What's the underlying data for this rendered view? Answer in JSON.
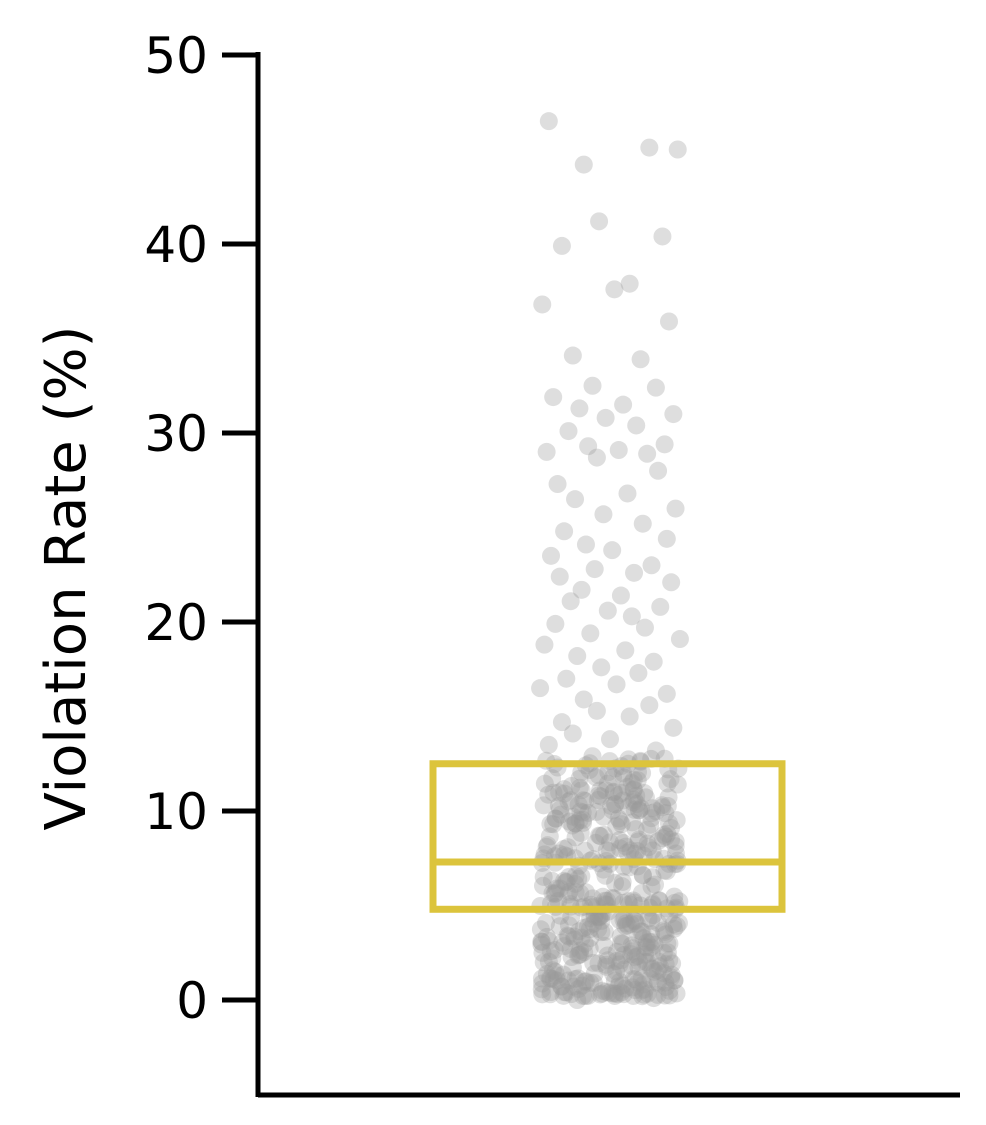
{
  "chart_data": {
    "type": "scatter",
    "subtype": "strip-plot-with-box",
    "title": "",
    "xlabel": "",
    "ylabel": "Violation Rate (%)",
    "ylim": [
      -5,
      50
    ],
    "yticks": [
      0,
      10,
      20,
      30,
      40,
      50
    ],
    "grid": false,
    "legend": "none",
    "box": {
      "q1": 4.8,
      "median": 7.3,
      "q3": 12.5,
      "color": "#dcc43c"
    },
    "points_color": "#999999",
    "points": {
      "x_jitter": [
        -0.28,
        0.31,
        -0.12,
        0.18,
        -0.05,
        0.24,
        -0.22,
        0.09,
        0.02,
        -0.31,
        0.27,
        -0.17,
        0.14,
        -0.08,
        0.21,
        -0.26,
        0.06,
        -0.14,
        0.29,
        -0.02,
        0.12,
        -0.19,
        0.25,
        -0.1,
        0.04,
        -0.29,
        0.17,
        -0.06,
        0.22,
        -0.24,
        0.08,
        -0.16,
        0.3,
        -0.03,
        0.15,
        -0.21,
        0.26,
        -0.11,
        0.01,
        -0.27,
        0.19,
        -0.07,
        0.11,
        -0.23,
        0.28,
        -0.13,
        0.05,
        -0.18,
        0.23,
        -0.01,
        0.1,
        -0.25,
        0.16,
        -0.09,
        0.32,
        -0.3,
        0.07,
        -0.15,
        0.2,
        -0.04,
        0.13,
        -0.2,
        0.03,
        -0.32,
        0.26,
        -0.12,
        0.18,
        -0.06,
        0.09,
        -0.22,
        0.29,
        -0.17,
        0.0,
        -0.28,
        0.21,
        -0.08,
        0.14,
        -0.24,
        0.06,
        -0.14,
        0.31,
        -0.02,
        0.12,
        -0.19,
        0.24,
        -0.1,
        0.04,
        -0.26,
        0.17,
        -0.05,
        0.22,
        -0.29,
        0.08,
        -0.16,
        0.27,
        -0.03,
        0.15,
        -0.21,
        0.19,
        -0.11,
        0.01,
        -0.27,
        0.3,
        -0.07,
        0.11,
        -0.23,
        0.25,
        -0.13,
        0.05,
        -0.18,
        0.16,
        -0.01,
        0.1,
        -0.25,
        0.28,
        -0.09,
        0.07,
        -0.31,
        0.2,
        -0.15
      ],
      "y": [
        46.5,
        45.0,
        44.2,
        45.1,
        41.2,
        40.4,
        39.9,
        37.9,
        37.6,
        36.8,
        35.9,
        34.1,
        33.9,
        32.5,
        32.4,
        31.9,
        31.5,
        31.3,
        31.0,
        30.8,
        30.4,
        30.1,
        29.4,
        29.3,
        29.1,
        29.0,
        28.9,
        28.7,
        28.0,
        27.3,
        26.8,
        26.5,
        26.0,
        25.7,
        25.2,
        24.8,
        24.4,
        24.1,
        23.8,
        23.5,
        23.0,
        22.8,
        22.6,
        22.4,
        22.1,
        21.7,
        21.4,
        21.1,
        20.8,
        20.6,
        20.3,
        19.9,
        19.7,
        19.4,
        19.1,
        18.8,
        18.5,
        18.2,
        17.9,
        17.6,
        17.3,
        17.0,
        16.7,
        16.5,
        16.2,
        15.9,
        15.6,
        15.3,
        15.0,
        14.7,
        14.4,
        14.1,
        13.8,
        13.5,
        13.2,
        12.9,
        12.6,
        12.3,
        12.0,
        11.7,
        11.4,
        11.1,
        10.8,
        10.5,
        10.2,
        9.9,
        9.6,
        9.3,
        9.0,
        8.7,
        8.4,
        8.1,
        7.8,
        7.5,
        7.2,
        6.9,
        6.6,
        6.3,
        6.0,
        5.7,
        5.4,
        5.1,
        4.8,
        4.5,
        4.2,
        3.9,
        3.6,
        3.3,
        3.0,
        2.7,
        2.4,
        2.1,
        1.8,
        1.5,
        1.2,
        0.9,
        0.6,
        0.3,
        0.1,
        0.0
      ],
      "dense_band": {
        "count": 420,
        "y_range": [
          0.2,
          12.8
        ],
        "x_jitter_range": [
          -0.32,
          0.32
        ]
      }
    }
  }
}
